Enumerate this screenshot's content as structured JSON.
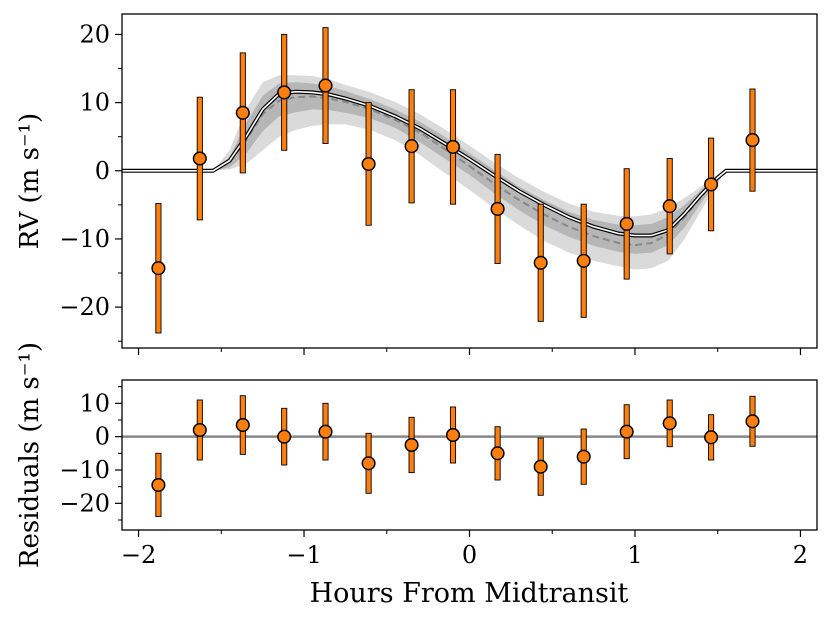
{
  "chart_data": [
    {
      "type": "scatter",
      "ylabel": "RV (m s⁻¹)",
      "xlim": [
        -2.1,
        2.1
      ],
      "ylim": [
        -26,
        23
      ],
      "yticks": [
        -20,
        -10,
        0,
        10,
        20
      ],
      "yticklabels": [
        "−20",
        "−10",
        "0",
        "10",
        "20"
      ],
      "grid": false,
      "series": [
        {
          "kind": "errorbar-points",
          "marker_color": "#ff7f0e",
          "x": [
            -1.88,
            -1.63,
            -1.37,
            -1.12,
            -0.87,
            -0.61,
            -0.35,
            -0.1,
            0.17,
            0.43,
            0.69,
            0.95,
            1.21,
            1.46,
            1.71
          ],
          "y": [
            -14.3,
            1.8,
            8.5,
            11.5,
            12.5,
            1.0,
            3.6,
            3.5,
            -5.6,
            -13.5,
            -13.2,
            -7.8,
            -5.2,
            -2.0,
            4.5
          ],
          "yerr": [
            9.5,
            9.0,
            8.8,
            8.5,
            8.5,
            9.0,
            8.3,
            8.4,
            8.0,
            8.6,
            8.3,
            8.1,
            7.0,
            6.8,
            7.5
          ]
        },
        {
          "kind": "model-line",
          "color": "#222222",
          "x": [
            -2.1,
            -1.55,
            -1.45,
            -1.35,
            -1.25,
            -1.15,
            -1.05,
            -0.95,
            -0.85,
            -0.75,
            -0.6,
            -0.45,
            -0.3,
            -0.15,
            0.0,
            0.15,
            0.3,
            0.45,
            0.6,
            0.75,
            0.9,
            1.0,
            1.1,
            1.2,
            1.3,
            1.4,
            1.5,
            1.55,
            2.1
          ],
          "y": [
            0,
            0,
            1.5,
            5.0,
            9.0,
            11.3,
            11.6,
            11.5,
            11.2,
            10.6,
            9.5,
            8.0,
            6.2,
            4.0,
            1.7,
            -0.7,
            -3.0,
            -5.0,
            -6.8,
            -8.2,
            -9.2,
            -9.5,
            -9.5,
            -8.7,
            -6.3,
            -3.5,
            -1.0,
            0,
            0
          ]
        },
        {
          "kind": "model-dashed",
          "color": "#888888",
          "x": [
            -2.1,
            -1.55,
            -1.45,
            -1.35,
            -1.25,
            -1.15,
            -1.05,
            -0.95,
            -0.85,
            -0.75,
            -0.6,
            -0.45,
            -0.3,
            -0.15,
            0.0,
            0.15,
            0.3,
            0.45,
            0.6,
            0.75,
            0.9,
            1.0,
            1.1,
            1.2,
            1.3,
            1.4,
            1.5,
            1.55,
            2.1
          ],
          "y": [
            0,
            0,
            1.2,
            4.5,
            8.3,
            10.3,
            10.8,
            10.9,
            10.6,
            10.1,
            9.0,
            7.5,
            5.6,
            3.2,
            0.7,
            -1.9,
            -4.3,
            -6.4,
            -8.2,
            -9.6,
            -10.6,
            -10.9,
            -10.6,
            -9.3,
            -6.8,
            -3.8,
            -1.1,
            0,
            0
          ]
        },
        {
          "kind": "band-1sigma",
          "color": "#999999",
          "x": [
            -2.1,
            -1.55,
            -1.45,
            -1.35,
            -1.25,
            -1.15,
            -1.05,
            -0.95,
            -0.85,
            -0.75,
            -0.6,
            -0.45,
            -0.3,
            -0.15,
            0.0,
            0.15,
            0.3,
            0.45,
            0.6,
            0.75,
            0.9,
            1.0,
            1.1,
            1.2,
            1.3,
            1.4,
            1.5,
            1.55,
            2.1
          ],
          "upper": [
            0,
            0,
            2.0,
            7.0,
            11.0,
            12.8,
            13.0,
            12.8,
            12.4,
            11.7,
            10.5,
            9.0,
            7.2,
            5.0,
            2.6,
            0.1,
            -2.3,
            -4.3,
            -6.0,
            -7.2,
            -7.9,
            -8.0,
            -7.8,
            -6.8,
            -5.0,
            -2.8,
            -0.7,
            0,
            0
          ],
          "lower": [
            0,
            0,
            0.5,
            2.5,
            5.8,
            8.0,
            8.6,
            9.0,
            8.9,
            8.5,
            7.7,
            6.3,
            4.2,
            1.8,
            -0.6,
            -3.3,
            -5.8,
            -8.0,
            -9.7,
            -11.0,
            -11.9,
            -12.2,
            -12.0,
            -10.9,
            -8.3,
            -4.7,
            -1.4,
            0,
            0
          ]
        },
        {
          "kind": "band-2sigma",
          "color": "#bbbbbb",
          "x": [
            -2.1,
            -1.55,
            -1.45,
            -1.35,
            -1.25,
            -1.15,
            -1.05,
            -0.95,
            -0.85,
            -0.75,
            -0.6,
            -0.45,
            -0.3,
            -0.15,
            0.0,
            0.15,
            0.3,
            0.45,
            0.6,
            0.75,
            0.9,
            1.0,
            1.1,
            1.2,
            1.3,
            1.4,
            1.5,
            1.55,
            2.1
          ],
          "upper": [
            0,
            0,
            3.0,
            9.0,
            13.0,
            14.0,
            14.0,
            13.9,
            13.4,
            12.6,
            11.5,
            10.1,
            8.3,
            6.1,
            3.7,
            1.2,
            -1.1,
            -3.1,
            -4.8,
            -6.0,
            -6.6,
            -6.7,
            -6.4,
            -5.5,
            -4.0,
            -2.3,
            -0.6,
            0,
            0
          ],
          "lower": [
            0,
            0,
            0.2,
            1.0,
            3.0,
            5.0,
            6.0,
            6.6,
            6.8,
            6.8,
            6.0,
            4.5,
            2.3,
            -0.3,
            -2.8,
            -5.5,
            -8.0,
            -10.3,
            -12.0,
            -13.2,
            -14.0,
            -14.5,
            -14.3,
            -13.2,
            -10.0,
            -5.8,
            -1.8,
            0,
            0
          ]
        }
      ]
    },
    {
      "type": "scatter",
      "xlabel": "Hours From Midtransit",
      "ylabel": "Residuals (m s⁻¹)",
      "xlim": [
        -2.1,
        2.1
      ],
      "ylim": [
        -28,
        17
      ],
      "xticks": [
        -2,
        -1,
        0,
        1,
        2
      ],
      "xticklabels": [
        "−2",
        "−1",
        "0",
        "1",
        "2"
      ],
      "yticks": [
        -20,
        -10,
        0,
        10
      ],
      "yticklabels": [
        "−20",
        "−10",
        "0",
        "10"
      ],
      "grid": false,
      "zero_line_color": "#888888",
      "series": [
        {
          "kind": "errorbar-points",
          "marker_color": "#ff7f0e",
          "x": [
            -1.88,
            -1.63,
            -1.37,
            -1.12,
            -0.87,
            -0.61,
            -0.35,
            -0.1,
            0.17,
            0.43,
            0.69,
            0.95,
            1.21,
            1.46,
            1.71
          ],
          "y": [
            -14.5,
            2.0,
            3.5,
            0.0,
            1.5,
            -8.0,
            -2.5,
            0.5,
            -5.0,
            -9.0,
            -6.0,
            1.5,
            4.0,
            -0.2,
            4.6
          ],
          "yerr": [
            9.5,
            9.0,
            8.8,
            8.5,
            8.5,
            9.0,
            8.3,
            8.4,
            8.0,
            8.6,
            8.3,
            8.1,
            7.0,
            6.8,
            7.5
          ]
        }
      ]
    }
  ]
}
